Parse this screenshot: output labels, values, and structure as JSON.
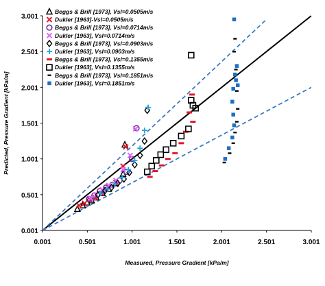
{
  "chart_data": {
    "type": "scatter",
    "xlabel": "Measured, Pressure Gradient [kPa/m]",
    "ylabel": "Predicted, Pressure Gradient [kPa/m]",
    "xlim": [
      0.001,
      3.001
    ],
    "ylim": [
      0.001,
      3.001
    ],
    "x_ticks": [
      "0.001",
      "0.501",
      "1.001",
      "1.501",
      "2.001",
      "2.501",
      "3.001"
    ],
    "y_ticks": [
      "0.001",
      "0.501",
      "1.001",
      "1.501",
      "2.001",
      "2.501",
      "3.001"
    ],
    "grid": false,
    "legend_position": "top-left",
    "reference_lines": [
      {
        "kind": "solid",
        "color": "#000000",
        "x": [
          0.001,
          3.0
        ],
        "y": [
          0.001,
          3.0
        ]
      },
      {
        "kind": "dashed",
        "color": "#3a7cc0",
        "x": [
          0.001,
          2.5
        ],
        "y": [
          0.001,
          2.95
        ]
      },
      {
        "kind": "dashed",
        "color": "#3a7cc0",
        "x": [
          0.001,
          3.0
        ],
        "y": [
          0.001,
          2.0
        ]
      }
    ],
    "series": [
      {
        "name": "Beggs & Brill [1973], Vsl=0.0505m/s",
        "marker": "triangle",
        "color": "#000000",
        "x": [
          0.39,
          0.45,
          0.5,
          0.55,
          0.6,
          0.67,
          0.74,
          0.82,
          0.9,
          0.92
        ],
        "y": [
          0.3,
          0.35,
          0.39,
          0.42,
          0.46,
          0.52,
          0.58,
          0.66,
          0.79,
          1.2
        ]
      },
      {
        "name": "Dukler [1963]-Vsl=0.0505m/s",
        "marker": "x",
        "color": "#e4182c",
        "x": [
          0.41,
          0.47,
          0.53,
          0.59,
          0.66,
          0.74,
          0.82,
          0.9,
          0.93
        ],
        "y": [
          0.35,
          0.38,
          0.43,
          0.46,
          0.52,
          0.6,
          0.67,
          0.9,
          1.17
        ]
      },
      {
        "name": "Beggs & Brill [1973], Vsl=0.0714m/s",
        "marker": "circle",
        "color": "#7030a0",
        "x": [
          0.52,
          0.58,
          0.64,
          0.71,
          0.78,
          0.86,
          0.94,
          1.0,
          1.05
        ],
        "y": [
          0.44,
          0.49,
          0.55,
          0.6,
          0.64,
          0.7,
          0.82,
          1.0,
          1.43
        ]
      },
      {
        "name": "Dukler [1963], Vsl=0.0714m/s",
        "marker": "x",
        "color": "#e066ff",
        "x": [
          0.54,
          0.6,
          0.67,
          0.74,
          0.82,
          0.9,
          0.98,
          1.04
        ],
        "y": [
          0.45,
          0.5,
          0.57,
          0.63,
          0.7,
          0.85,
          1.05,
          1.42
        ]
      },
      {
        "name": "Beggs & Brill [1973], Vsl=0.0903m/s",
        "marker": "diamond",
        "color": "#000000",
        "x": [
          0.62,
          0.7,
          0.77,
          0.84,
          0.91,
          0.97,
          1.03,
          1.09,
          1.14,
          1.17
        ],
        "y": [
          0.5,
          0.56,
          0.6,
          0.66,
          0.72,
          0.81,
          0.92,
          1.05,
          1.25,
          1.68
        ]
      },
      {
        "name": "Dukler [1963], Vsl=0.0903m/s",
        "marker": "plus",
        "color": "#1fa5e0",
        "x": [
          0.65,
          0.73,
          0.81,
          0.89,
          0.96,
          1.03,
          1.09,
          1.14,
          1.18
        ],
        "y": [
          0.52,
          0.58,
          0.65,
          0.74,
          0.85,
          0.98,
          1.15,
          1.4,
          1.72
        ]
      },
      {
        "name": "Beggs & Brill [1973], Vsl=0.1355m/s",
        "marker": "dash",
        "color": "#e4182c",
        "x": [
          1.2,
          1.26,
          1.33,
          1.4,
          1.48,
          1.55,
          1.6,
          1.64,
          1.67,
          1.68
        ],
        "y": [
          0.75,
          0.83,
          0.91,
          1.0,
          1.08,
          1.22,
          1.38,
          1.65,
          1.9,
          1.52
        ]
      },
      {
        "name": "Dukler [1963], Vsl=0.1355m/s",
        "marker": "square",
        "color": "#000000",
        "x": [
          1.17,
          1.22,
          1.27,
          1.32,
          1.38,
          1.46,
          1.55,
          1.63,
          1.66,
          1.68,
          1.71,
          1.66
        ],
        "y": [
          0.82,
          0.9,
          0.98,
          1.06,
          1.13,
          1.22,
          1.32,
          1.42,
          1.82,
          1.75,
          1.71,
          2.45
        ]
      },
      {
        "name": "Beggs & Brill [1973], Vsl=0.1851m/s",
        "marker": "smalldash",
        "color": "#000000",
        "x": [
          2.03,
          2.09,
          2.13,
          2.15,
          2.17,
          2.18,
          2.17,
          2.16,
          2.14,
          2.15
        ],
        "y": [
          0.95,
          1.08,
          1.22,
          1.37,
          1.52,
          1.7,
          1.95,
          2.25,
          2.5,
          2.68
        ]
      },
      {
        "name": "Dukler [1963], Vsl=0.1851m/s",
        "marker": "smallsquare",
        "color": "#1f6fc4",
        "x": [
          2.04,
          2.08,
          2.12,
          2.14,
          2.13,
          2.12,
          2.13,
          2.15,
          2.17,
          2.18,
          2.16,
          2.14
        ],
        "y": [
          1.0,
          1.15,
          1.3,
          1.47,
          1.62,
          1.8,
          1.98,
          2.18,
          2.3,
          2.03,
          2.1,
          2.95
        ]
      }
    ]
  }
}
